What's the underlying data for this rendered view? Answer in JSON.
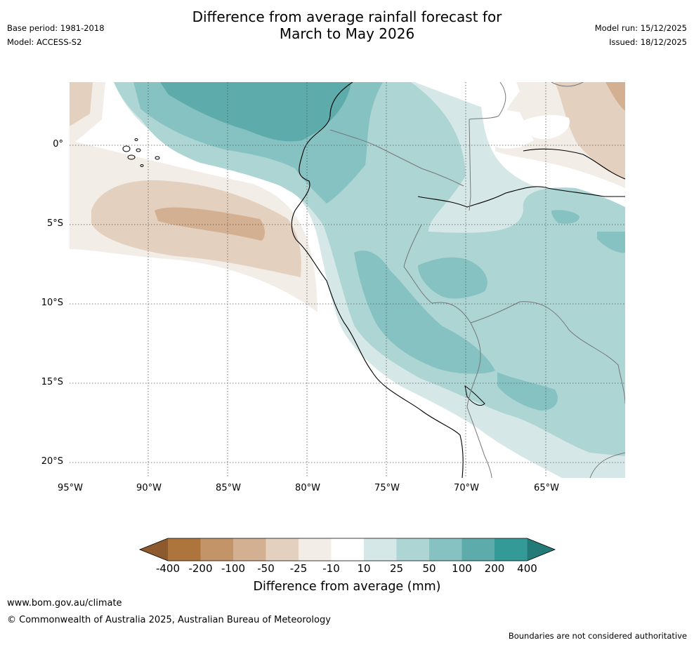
{
  "header": {
    "title_line1": "Difference from average rainfall forecast for",
    "title_line2": "March to May 2026",
    "base_period": "Base period: 1981-2018",
    "model": "Model: ACCESS-S2",
    "model_run": "Model run: 15/12/2025",
    "issued": "Issued: 18/12/2025"
  },
  "map": {
    "lat_ticks": [
      "0°",
      "5°S",
      "10°S",
      "15°S",
      "20°S"
    ],
    "lon_ticks": [
      "95°W",
      "90°W",
      "85°W",
      "80°W",
      "75°W",
      "70°W",
      "65°W"
    ]
  },
  "colorbar": {
    "title": "Difference from average (mm)",
    "levels": [
      "-400",
      "-200",
      "-100",
      "-50",
      "-25",
      "-10",
      "10",
      "25",
      "50",
      "100",
      "200",
      "400"
    ],
    "colors": {
      "under": "#8c5a2c",
      "c_-400": "#ad743c",
      "c_-200": "#c29468",
      "c_-100": "#d4b092",
      "c_-50": "#e4d0be",
      "c_-25": "#f2ede7",
      "c_-10": "#ffffff",
      "c_10": "#d5e8e7",
      "c_25": "#acd5d4",
      "c_50": "#85c2c1",
      "c_100": "#5dabab",
      "c_200": "#349a97",
      "over": "#237a78"
    }
  },
  "footer": {
    "url": "www.bom.gov.au/climate",
    "copyright": "© Commonwealth of Australia 2025, Australian Bureau of Meteorology",
    "disclaimer": "Boundaries are not considered authoritative"
  }
}
